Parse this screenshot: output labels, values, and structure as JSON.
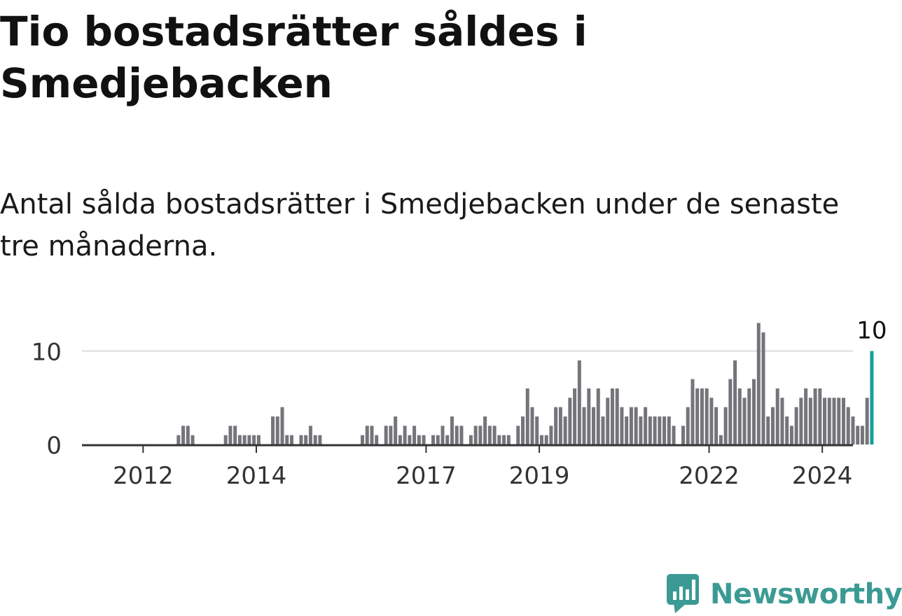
{
  "title": "Tio bostadsrätter såldes i Smedjebacken",
  "subtitle": "Antal sålda bostadsrätter i Smedjebacken under de senaste tre månaderna.",
  "brand": {
    "name": "Newsworthy",
    "icon": "newsworthy-chart-bubble-icon",
    "color": "#3b9b94"
  },
  "chart_data": {
    "type": "bar",
    "x_start": "2011-08",
    "x_unit": "month",
    "values": [
      0,
      0,
      0,
      0,
      0,
      0,
      0,
      0,
      0,
      0,
      1,
      2,
      2,
      1,
      0,
      0,
      0,
      0,
      0,
      0,
      1,
      2,
      2,
      1,
      1,
      1,
      1,
      1,
      0,
      0,
      3,
      3,
      4,
      1,
      1,
      0,
      1,
      1,
      2,
      1,
      1,
      0,
      0,
      0,
      0,
      0,
      0,
      0,
      0,
      1,
      2,
      2,
      1,
      0,
      2,
      2,
      3,
      1,
      2,
      1,
      2,
      1,
      1,
      0,
      1,
      1,
      2,
      1,
      3,
      2,
      2,
      0,
      1,
      2,
      2,
      3,
      2,
      2,
      1,
      1,
      1,
      0,
      2,
      3,
      6,
      4,
      3,
      1,
      1,
      2,
      4,
      4,
      3,
      5,
      6,
      9,
      4,
      6,
      4,
      6,
      3,
      5,
      6,
      6,
      4,
      3,
      4,
      4,
      3,
      4,
      3,
      3,
      3,
      3,
      3,
      2,
      0,
      2,
      4,
      7,
      6,
      6,
      6,
      5,
      4,
      1,
      4,
      7,
      9,
      6,
      5,
      6,
      7,
      13,
      12,
      3,
      4,
      6,
      5,
      3,
      2,
      4,
      5,
      6,
      5,
      6,
      6,
      5,
      5,
      5,
      5,
      5,
      4,
      3,
      2,
      2,
      5,
      10
    ],
    "highlight_last": true,
    "highlight_label": "10",
    "bar_color": "#75747a",
    "highlight_color": "#14a09a",
    "ylim": [
      0,
      13
    ],
    "y_ticks": [
      0,
      10
    ],
    "x_ticks": [
      {
        "label": "2012",
        "date": "2012-01"
      },
      {
        "label": "2014",
        "date": "2014-01"
      },
      {
        "label": "2017",
        "date": "2017-01"
      },
      {
        "label": "2019",
        "date": "2019-01"
      },
      {
        "label": "2022",
        "date": "2022-01"
      },
      {
        "label": "2024",
        "date": "2024-01"
      }
    ],
    "grid": true
  }
}
